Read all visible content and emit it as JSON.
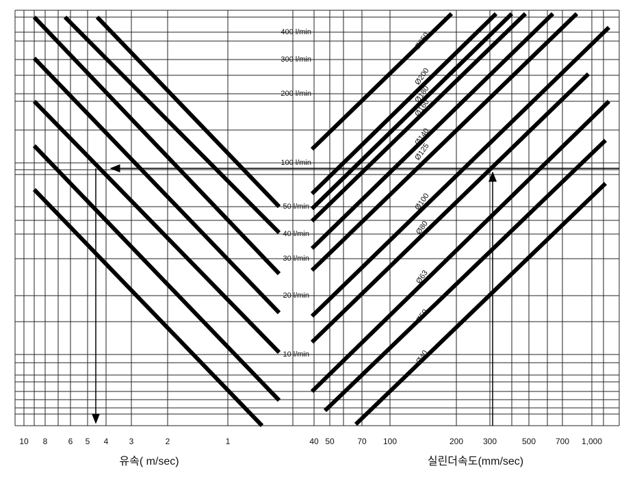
{
  "left_axis": {
    "ticks": [
      "10",
      "8",
      "6",
      "5",
      "4",
      "3",
      "2",
      "1"
    ],
    "title": "유속( m/sec)"
  },
  "right_axis": {
    "ticks": [
      "40",
      "50",
      "70",
      "100",
      "200",
      "300",
      "500",
      "700",
      "1,000"
    ],
    "title": "실린더속도(mm/sec)"
  },
  "flow_labels": [
    "400  l/min",
    "300  l/min",
    "200  l/min",
    "100  l/min",
    "50  l/min",
    "40  l/min",
    "30  l/min",
    "20  l/min",
    "10  l/min"
  ],
  "diameters": [
    "Ø250",
    "Ø200",
    "Ø180",
    "Ø160",
    "Ø140",
    "Ø125",
    "Ø100",
    "Ø80",
    "Ø63",
    "Ø50",
    "Ø40"
  ]
}
